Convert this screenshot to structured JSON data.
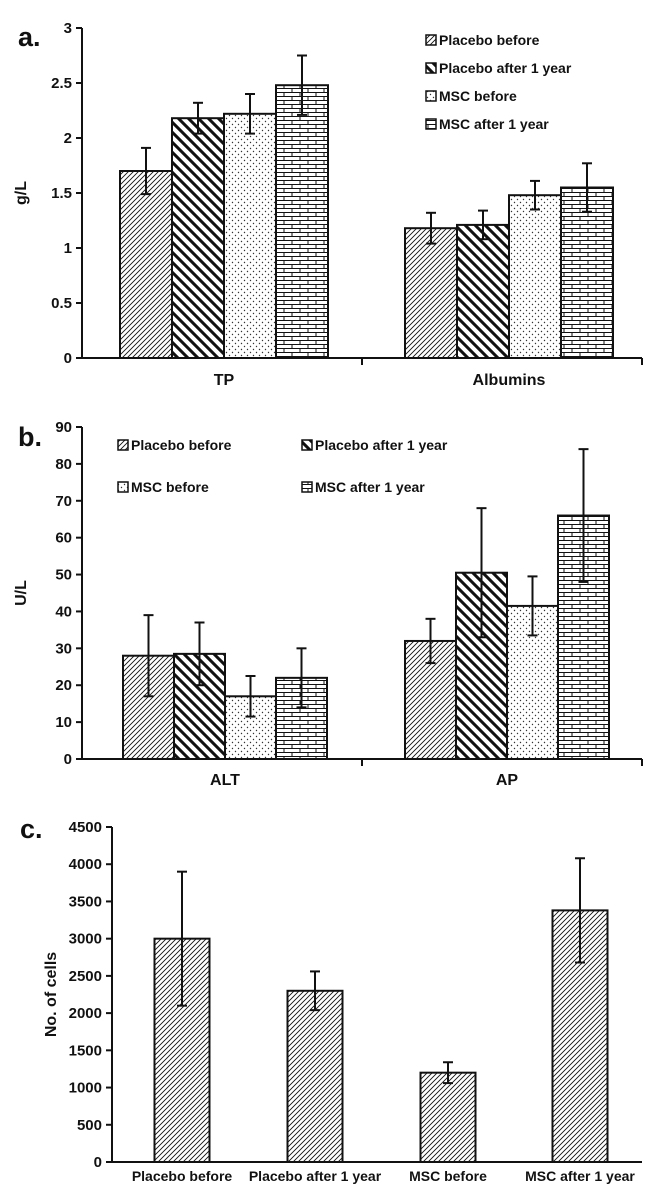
{
  "chart_data": [
    {
      "panel_label": "a.",
      "type": "bar",
      "ylabel": "g/L",
      "ylim": [
        0,
        3
      ],
      "yticks": [
        0,
        0.5,
        1,
        1.5,
        2,
        2.5,
        3
      ],
      "ytick_labels": [
        "0",
        "0.5",
        "1",
        "1.5",
        "2",
        "2.5",
        "3"
      ],
      "categories": [
        "TP",
        "Albumins"
      ],
      "legend_position": "top-right",
      "series": [
        {
          "name": "Placebo before",
          "pattern": "diag-light",
          "values": [
            1.7,
            1.18
          ],
          "errors": [
            0.21,
            0.14
          ]
        },
        {
          "name": "Placebo after 1 year",
          "pattern": "diag-bold",
          "values": [
            2.18,
            1.21
          ],
          "errors": [
            0.14,
            0.13
          ]
        },
        {
          "name": "MSC before",
          "pattern": "dots",
          "values": [
            2.22,
            1.48
          ],
          "errors": [
            0.18,
            0.13
          ]
        },
        {
          "name": "MSC after 1 year",
          "pattern": "bricks",
          "values": [
            2.48,
            1.55
          ],
          "errors": [
            0.27,
            0.22
          ]
        }
      ]
    },
    {
      "panel_label": "b.",
      "type": "bar",
      "ylabel": "U/L",
      "ylim": [
        0,
        90
      ],
      "yticks": [
        0,
        10,
        20,
        30,
        40,
        50,
        60,
        70,
        80,
        90
      ],
      "ytick_labels": [
        "0",
        "10",
        "20",
        "30",
        "40",
        "50",
        "60",
        "70",
        "80",
        "90"
      ],
      "categories": [
        "ALT",
        "AP"
      ],
      "legend_position": "top-left",
      "series": [
        {
          "name": "Placebo before",
          "pattern": "diag-light",
          "values": [
            28,
            32
          ],
          "errors": [
            11,
            6
          ]
        },
        {
          "name": "Placebo after 1 year",
          "pattern": "diag-bold",
          "values": [
            28.5,
            50.5
          ],
          "errors": [
            8.5,
            17.5
          ]
        },
        {
          "name": "MSC before",
          "pattern": "dots",
          "values": [
            17,
            41.5
          ],
          "errors": [
            5.5,
            8
          ]
        },
        {
          "name": "MSC after 1 year",
          "pattern": "bricks",
          "values": [
            22,
            66
          ],
          "errors": [
            8,
            18
          ]
        }
      ]
    },
    {
      "panel_label": "c.",
      "type": "bar",
      "ylabel": "No. of cells",
      "ylim": [
        0,
        4500
      ],
      "yticks": [
        0,
        500,
        1000,
        1500,
        2000,
        2500,
        3000,
        3500,
        4000,
        4500
      ],
      "ytick_labels": [
        "0",
        "500",
        "1000",
        "1500",
        "2000",
        "2500",
        "3000",
        "3500",
        "4000",
        "4500"
      ],
      "categories": [
        "Placebo before",
        "Placebo after 1 year",
        "MSC before",
        "MSC after 1 year"
      ],
      "series": [
        {
          "pattern": "diag-light",
          "values": [
            3000,
            2300,
            1200,
            3380
          ],
          "errors": [
            900,
            260,
            140,
            700
          ]
        }
      ]
    }
  ]
}
